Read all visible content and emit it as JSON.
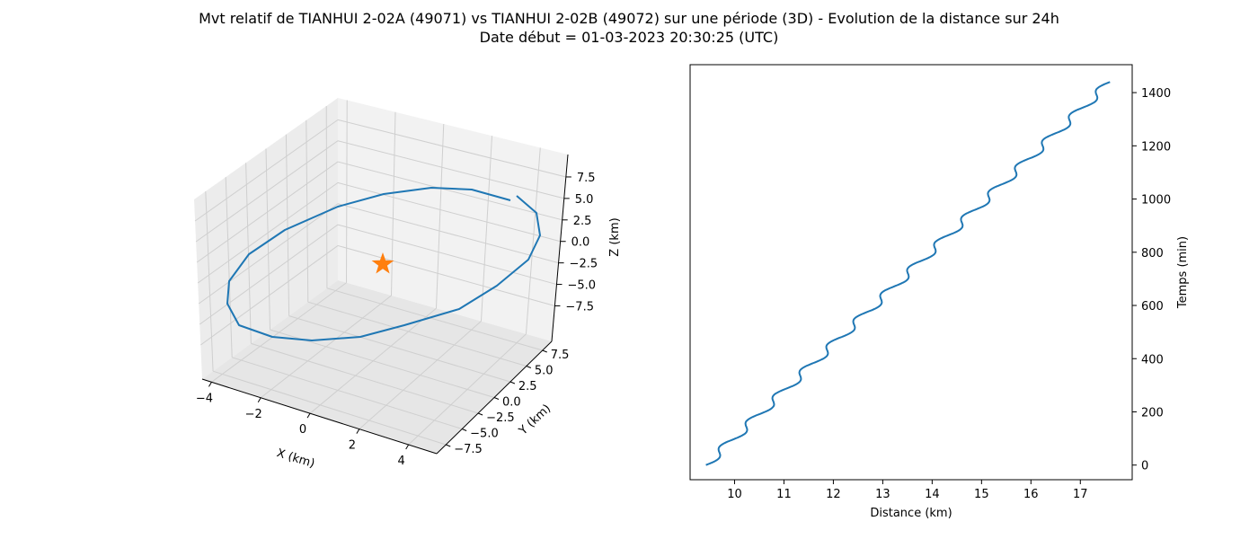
{
  "figure": {
    "title_line1": "Mvt relatif de TIANHUI 2-02A (49071) vs TIANHUI 2-02B (49072) sur une période (3D) - Evolution de la distance sur 24h",
    "title_line2": "Date début = 01-03-2023 20:30:25 (UTC)"
  },
  "colors": {
    "series": "#1f77b4",
    "marker": "#ff7f0e",
    "pane": "#f2f2f2",
    "grid": "#d0d0d0"
  },
  "chart_data": [
    {
      "type": "line3d",
      "xlabel": "X (km)",
      "ylabel": "Y (km)",
      "zlabel": "Z (km)",
      "x_ticks": [
        "−4",
        "−2",
        "0",
        "2",
        "4"
      ],
      "y_ticks": [
        "−7.5",
        "−5.0",
        "−2.5",
        "0.0",
        "2.5",
        "5.0",
        "7.5"
      ],
      "z_ticks": [
        "7.5",
        "5.0",
        "2.5",
        "0.0",
        "−2.5",
        "−5.0",
        "−7.5"
      ],
      "marker": {
        "shape": "star",
        "x": 0,
        "y": 0,
        "z": 0
      },
      "series": [
        {
          "points_note_free": true
        }
      ]
    },
    {
      "type": "line",
      "xlabel": "Distance (km)",
      "ylabel": "Temps (min)",
      "xlim": [
        9.1,
        18.05
      ],
      "ylim": [
        -55,
        1505
      ],
      "x_ticks": [
        10,
        11,
        12,
        13,
        14,
        15,
        16,
        17
      ],
      "y_ticks": [
        0,
        200,
        400,
        600,
        800,
        1000,
        1200,
        1400
      ],
      "y_axis_side": "right",
      "series": {
        "t_start": 0,
        "t_end": 1440,
        "d_start": 9.42,
        "d_end": 17.6,
        "oscillation_period_min": 96,
        "oscillation_amplitude_km": 0.12
      }
    }
  ]
}
